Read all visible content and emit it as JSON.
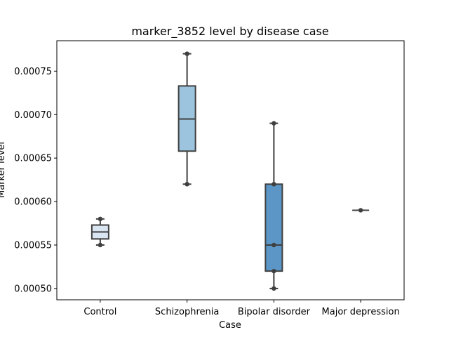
{
  "chart_data": {
    "type": "box",
    "title": "marker_3852 level by disease case",
    "xlabel": "Case",
    "ylabel": "Marker level",
    "ylim": [
      0.000487,
      0.000785
    ],
    "yticks": [
      "0.00050",
      "0.00055",
      "0.00060",
      "0.00065",
      "0.00070",
      "0.00075"
    ],
    "ytick_values": [
      0.0005,
      0.00055,
      0.0006,
      0.00065,
      0.0007,
      0.00075
    ],
    "categories": [
      "Control",
      "Schizophrenia",
      "Bipolar disorder",
      "Major depression"
    ],
    "boxes": [
      {
        "category": "Control",
        "color": "#dae5f2",
        "min": 0.00055,
        "q1": 0.000557,
        "median": 0.000565,
        "q3": 0.000573,
        "max": 0.00058,
        "points": [
          0.00055,
          0.00058
        ]
      },
      {
        "category": "Schizophrenia",
        "color": "#9cc4de",
        "min": 0.00062,
        "q1": 0.000658,
        "median": 0.000695,
        "q3": 0.000733,
        "max": 0.00077,
        "points": [
          0.00062,
          0.00077
        ]
      },
      {
        "category": "Bipolar disorder",
        "color": "#5b96c6",
        "min": 0.0005,
        "q1": 0.00052,
        "median": 0.00055,
        "q3": 0.00062,
        "max": 0.00069,
        "points": [
          0.0005,
          0.00052,
          0.00055,
          0.00062,
          0.00069
        ]
      },
      {
        "category": "Major depression",
        "color": "#3e77b0",
        "min": 0.00059,
        "q1": 0.00059,
        "median": 0.00059,
        "q3": 0.00059,
        "max": 0.00059,
        "points": [
          0.00059
        ]
      }
    ],
    "grid": false,
    "legend": "none"
  }
}
